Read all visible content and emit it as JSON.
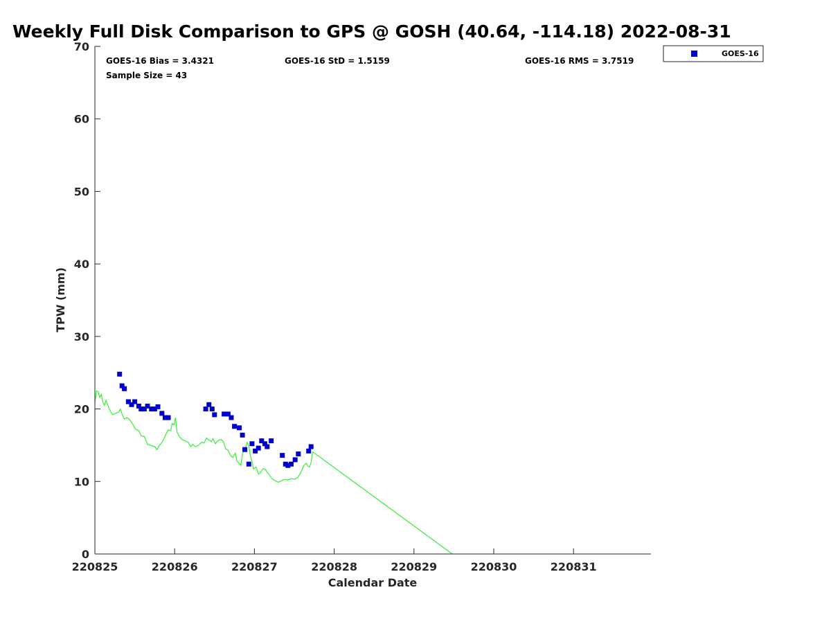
{
  "chart_data": {
    "type": "scatter",
    "title": "Weekly Full Disk Comparison to GPS @ GOSH (40.64, -114.18) 2022-08-31",
    "xlabel": "Calendar Date",
    "ylabel": "TPW (mm)",
    "xlim": [
      0,
      7
    ],
    "ylim": [
      0,
      70
    ],
    "x_tick_values": [
      0,
      1,
      2,
      3,
      4,
      5,
      6
    ],
    "x_tick_labels": [
      "220825",
      "220826",
      "220827",
      "220828",
      "220829",
      "220830",
      "220831"
    ],
    "y_ticks": [
      0,
      10,
      20,
      30,
      40,
      50,
      60,
      70
    ],
    "grid": false,
    "legend_position": "top-right",
    "stats": {
      "bias": "GOES-16 Bias = 3.4321",
      "std": "GOES-16 StD = 1.5159",
      "rms": "GOES-16 RMS = 3.7519",
      "sample": "Sample Size = 43"
    },
    "series": [
      {
        "name": "GOES-16",
        "type": "scatter",
        "color": "#0000cc",
        "marker": "square",
        "points": [
          [
            0.31,
            24.8
          ],
          [
            0.34,
            23.2
          ],
          [
            0.37,
            22.8
          ],
          [
            0.42,
            21.0
          ],
          [
            0.46,
            20.6
          ],
          [
            0.5,
            21.0
          ],
          [
            0.55,
            20.4
          ],
          [
            0.58,
            20.0
          ],
          [
            0.62,
            20.0
          ],
          [
            0.66,
            20.4
          ],
          [
            0.71,
            20.0
          ],
          [
            0.75,
            20.0
          ],
          [
            0.79,
            20.3
          ],
          [
            0.84,
            19.4
          ],
          [
            0.88,
            18.8
          ],
          [
            0.92,
            18.8
          ],
          [
            1.39,
            20.0
          ],
          [
            1.43,
            20.6
          ],
          [
            1.47,
            20.0
          ],
          [
            1.5,
            19.2
          ],
          [
            1.62,
            19.3
          ],
          [
            1.67,
            19.3
          ],
          [
            1.71,
            18.8
          ],
          [
            1.75,
            17.6
          ],
          [
            1.81,
            17.4
          ],
          [
            1.85,
            16.4
          ],
          [
            1.88,
            14.4
          ],
          [
            1.93,
            12.4
          ],
          [
            1.97,
            15.2
          ],
          [
            2.01,
            14.2
          ],
          [
            2.05,
            14.6
          ],
          [
            2.09,
            15.6
          ],
          [
            2.13,
            15.2
          ],
          [
            2.16,
            14.8
          ],
          [
            2.21,
            15.6
          ],
          [
            2.35,
            13.6
          ],
          [
            2.39,
            12.4
          ],
          [
            2.42,
            12.2
          ],
          [
            2.46,
            12.4
          ],
          [
            2.51,
            13.0
          ],
          [
            2.55,
            13.8
          ],
          [
            2.68,
            14.2
          ],
          [
            2.71,
            14.8
          ]
        ]
      },
      {
        "name": "GPS",
        "type": "line",
        "color": "#33ee33",
        "points": [
          [
            0.0,
            20.8
          ],
          [
            0.02,
            22.5
          ],
          [
            0.04,
            22.4
          ],
          [
            0.06,
            21.6
          ],
          [
            0.08,
            22.0
          ],
          [
            0.1,
            21.0
          ],
          [
            0.12,
            20.5
          ],
          [
            0.14,
            21.2
          ],
          [
            0.16,
            20.6
          ],
          [
            0.18,
            20.0
          ],
          [
            0.22,
            19.2
          ],
          [
            0.26,
            19.4
          ],
          [
            0.3,
            19.6
          ],
          [
            0.32,
            20.0
          ],
          [
            0.34,
            19.3
          ],
          [
            0.37,
            18.6
          ],
          [
            0.4,
            18.8
          ],
          [
            0.44,
            18.5
          ],
          [
            0.48,
            17.8
          ],
          [
            0.51,
            17.2
          ],
          [
            0.55,
            17.0
          ],
          [
            0.58,
            16.3
          ],
          [
            0.62,
            16.2
          ],
          [
            0.66,
            15.1
          ],
          [
            0.7,
            15.0
          ],
          [
            0.75,
            14.8
          ],
          [
            0.78,
            14.4
          ],
          [
            0.81,
            15.0
          ],
          [
            0.85,
            15.5
          ],
          [
            0.89,
            16.5
          ],
          [
            0.92,
            17.1
          ],
          [
            0.95,
            17.0
          ],
          [
            0.97,
            18.0
          ],
          [
            0.99,
            17.8
          ],
          [
            1.01,
            18.8
          ],
          [
            1.03,
            16.8
          ],
          [
            1.06,
            16.2
          ],
          [
            1.09,
            15.8
          ],
          [
            1.13,
            15.6
          ],
          [
            1.17,
            15.4
          ],
          [
            1.2,
            14.8
          ],
          [
            1.23,
            15.1
          ],
          [
            1.26,
            14.8
          ],
          [
            1.3,
            15.0
          ],
          [
            1.34,
            15.4
          ],
          [
            1.37,
            15.3
          ],
          [
            1.4,
            16.0
          ],
          [
            1.43,
            15.7
          ],
          [
            1.46,
            15.5
          ],
          [
            1.48,
            15.9
          ],
          [
            1.51,
            15.2
          ],
          [
            1.54,
            15.6
          ],
          [
            1.58,
            15.8
          ],
          [
            1.61,
            15.5
          ],
          [
            1.64,
            14.5
          ],
          [
            1.67,
            14.3
          ],
          [
            1.7,
            13.6
          ],
          [
            1.73,
            13.3
          ],
          [
            1.76,
            13.9
          ],
          [
            1.78,
            12.8
          ],
          [
            1.81,
            12.5
          ],
          [
            1.83,
            12.2
          ],
          [
            1.85,
            13.8
          ],
          [
            1.88,
            14.5
          ],
          [
            1.91,
            15.4
          ],
          [
            1.93,
            14.9
          ],
          [
            1.95,
            13.5
          ],
          [
            1.97,
            12.8
          ],
          [
            1.99,
            11.7
          ],
          [
            2.02,
            12.0
          ],
          [
            2.05,
            11.0
          ],
          [
            2.08,
            11.3
          ],
          [
            2.11,
            11.8
          ],
          [
            2.14,
            11.6
          ],
          [
            2.18,
            11.0
          ],
          [
            2.22,
            10.4
          ],
          [
            2.26,
            10.1
          ],
          [
            2.3,
            9.9
          ],
          [
            2.34,
            10.1
          ],
          [
            2.38,
            10.3
          ],
          [
            2.42,
            10.2
          ],
          [
            2.46,
            10.4
          ],
          [
            2.5,
            10.3
          ],
          [
            2.54,
            10.5
          ],
          [
            2.58,
            11.2
          ],
          [
            2.62,
            12.2
          ],
          [
            2.65,
            12.5
          ],
          [
            2.67,
            12.1
          ],
          [
            2.69,
            12.0
          ],
          [
            2.71,
            12.6
          ],
          [
            2.73,
            14.1
          ],
          [
            4.48,
            0.0
          ]
        ]
      }
    ]
  }
}
